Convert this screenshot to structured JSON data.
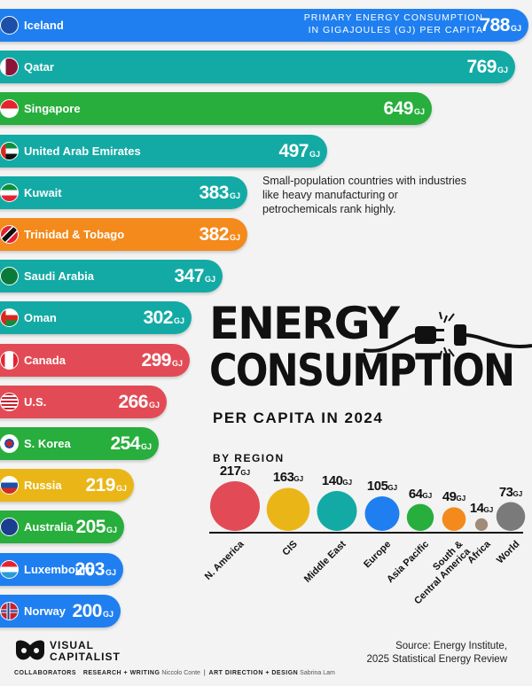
{
  "chart_data": [
    {
      "type": "bar",
      "orientation": "horizontal",
      "title": "",
      "metric_label": [
        "PRIMARY ENERGY CONSUMPTION",
        "IN GIGAJOULES (GJ) PER CAPITA"
      ],
      "unit": "GJ",
      "categories": [
        "Iceland",
        "Qatar",
        "Singapore",
        "United Arab Emirates",
        "Kuwait",
        "Trinidad & Tobago",
        "Saudi Arabia",
        "Oman",
        "Canada",
        "U.S.",
        "S. Korea",
        "Russia",
        "Australia",
        "Luxembourg",
        "Norway"
      ],
      "values": [
        788,
        769,
        649,
        497,
        383,
        382,
        347,
        302,
        299,
        266,
        254,
        219,
        205,
        203,
        200
      ],
      "colors": [
        "#1f7ff0",
        "#13aaa5",
        "#27ae3c",
        "#13aaa5",
        "#13aaa5",
        "#f38a1b",
        "#13aaa5",
        "#13aaa5",
        "#e24b55",
        "#e24b55",
        "#27ae3c",
        "#eab617",
        "#27ae3c",
        "#1f7ff0",
        "#1f7ff0"
      ],
      "annotation": "Small-population countries with industries like heavy manufacturing or petrochemicals rank highly."
    },
    {
      "type": "bubble",
      "title": "BY REGION",
      "unit": "GJ",
      "categories": [
        "N. America",
        "CIS",
        "Middle East",
        "Europe",
        "Asia Pacific",
        "South & Central America",
        "Africa",
        "World"
      ],
      "values": [
        217,
        163,
        140,
        105,
        64,
        49,
        14,
        73
      ],
      "colors": [
        "#e24b55",
        "#eab617",
        "#13aaa5",
        "#1f7ff0",
        "#27ae3c",
        "#f38a1b",
        "#a08a78",
        "#7a7a7a"
      ]
    }
  ],
  "header": {
    "title_line1": "ENERGY",
    "title_line2": "CONSUMPTION",
    "subtitle": "PER CAPITA IN 2024"
  },
  "brand": {
    "name_line1": "VISUAL",
    "name_line2": "CAPITALIST"
  },
  "credits": {
    "collaborators": "COLLABORATORS",
    "research_label": "RESEARCH + WRITING",
    "research_name": "Niccolo Conte",
    "art_label": "ART DIRECTION + DESIGN",
    "art_name": "Sabrina Lam",
    "separator": "|"
  },
  "source": {
    "line1": "Source: Energy Institute,",
    "line2": "2025 Statistical Energy Review"
  },
  "icons": [
    "flag-icon",
    "plug-icon",
    "visual-capitalist-logo-icon"
  ]
}
